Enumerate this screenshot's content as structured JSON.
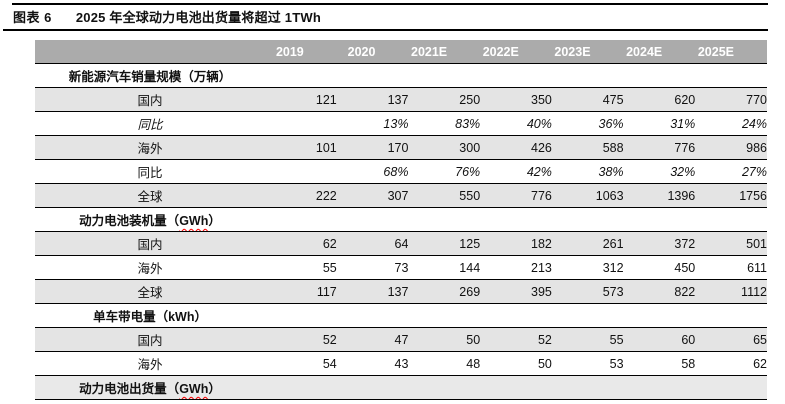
{
  "figure": {
    "tag": "图表 6",
    "title": "2025 年全球动力电池出货量将超过 1TWh"
  },
  "colors": {
    "header_bg": "#ABABAB",
    "header_text": "#FFFFFF",
    "shaded_row_bg": "#E4E4E4",
    "section_shaded_bg": "#E9E9E9",
    "rule": "#000000",
    "spellcheck_squiggle": "#FF0000"
  },
  "table": {
    "years": [
      "2019",
      "2020",
      "2021E",
      "2022E",
      "2023E",
      "2024E",
      "2025E"
    ],
    "rows": [
      {
        "label": "新能源汽车销量规模（万辆）"
      },
      {
        "label": "国内",
        "values": [
          "121",
          "137",
          "250",
          "350",
          "475",
          "620",
          "770"
        ]
      },
      {
        "label": "同比",
        "values": [
          "",
          "13%",
          "83%",
          "40%",
          "36%",
          "31%",
          "24%"
        ]
      },
      {
        "label": "海外",
        "values": [
          "101",
          "170",
          "300",
          "426",
          "588",
          "776",
          "986"
        ]
      },
      {
        "label": "同比",
        "values": [
          "",
          "68%",
          "76%",
          "42%",
          "38%",
          "32%",
          "27%"
        ]
      },
      {
        "label": "全球",
        "values": [
          "222",
          "307",
          "550",
          "776",
          "1063",
          "1396",
          "1756"
        ]
      },
      {
        "label_prefix": "动力电池装机量（",
        "label_unit": "GWh",
        "label_suffix": "）"
      },
      {
        "label": "国内",
        "values": [
          "62",
          "64",
          "125",
          "182",
          "261",
          "372",
          "501"
        ]
      },
      {
        "label": "海外",
        "values": [
          "55",
          "73",
          "144",
          "213",
          "312",
          "450",
          "611"
        ]
      },
      {
        "label": "全球",
        "values": [
          "117",
          "137",
          "269",
          "395",
          "573",
          "822",
          "1112"
        ]
      },
      {
        "label": "单车带电量（kWh）"
      },
      {
        "label": "国内",
        "values": [
          "52",
          "47",
          "50",
          "52",
          "55",
          "60",
          "65"
        ]
      },
      {
        "label": "海外",
        "values": [
          "54",
          "43",
          "48",
          "50",
          "53",
          "58",
          "62"
        ]
      },
      {
        "label_prefix": "动力电池出货量（",
        "label_unit": "GWh",
        "label_suffix": "）"
      }
    ]
  }
}
